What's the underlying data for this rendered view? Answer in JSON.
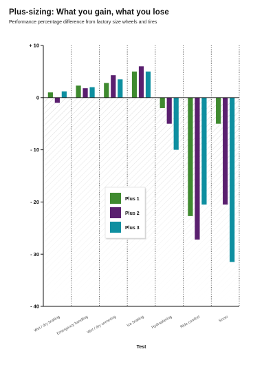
{
  "header": {
    "title": "Plus-sizing: What you gain, what you lose",
    "subtitle": "Performance percentage difference from factory size wheels and tires"
  },
  "chart_data": {
    "type": "bar",
    "title": "Plus-sizing: What you gain, what you lose",
    "subtitle": "Performance percentage difference from factory size wheels and tires",
    "xlabel": "Test",
    "ylabel": "",
    "ylim": [
      -40,
      10
    ],
    "yticks": [
      10,
      0,
      -10,
      -20,
      -30,
      -40
    ],
    "ytick_labels": [
      "+ 10",
      "0",
      "- 10",
      "- 20",
      "- 30",
      "- 40"
    ],
    "categories": [
      "Wet / dry braking",
      "Emergency handling",
      "Wet / dry cornering",
      "Ice braking",
      "Hydroplaning",
      "Ride comfort",
      "Snow"
    ],
    "series": [
      {
        "name": "Plus 1",
        "color": "#3f8a2f",
        "values": [
          1,
          2.3,
          2.8,
          5,
          -2,
          -22.7,
          -5
        ]
      },
      {
        "name": "Plus 2",
        "color": "#5a1f6f",
        "values": [
          -1,
          1.8,
          4.3,
          6,
          -5,
          -27.2,
          -20.5
        ]
      },
      {
        "name": "Plus 3",
        "color": "#0e8fa0",
        "values": [
          1.2,
          2,
          3.5,
          5,
          -10,
          -20.5,
          -31.5
        ]
      }
    ],
    "legend_position": "center",
    "grid": "vertical dotted separators between categories",
    "negative_region_shading": true
  }
}
